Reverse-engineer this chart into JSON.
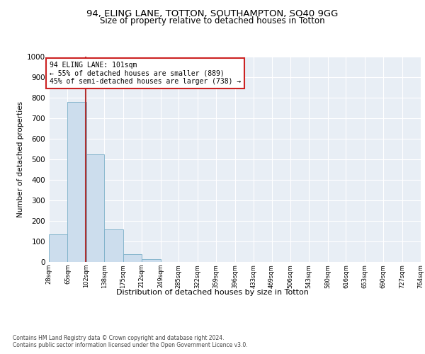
{
  "title_line1": "94, ELING LANE, TOTTON, SOUTHAMPTON, SO40 9GG",
  "title_line2": "Size of property relative to detached houses in Totton",
  "xlabel": "Distribution of detached houses by size in Totton",
  "ylabel": "Number of detached properties",
  "bar_color": "#ccdded",
  "bar_edge_color": "#7aafc8",
  "vline_color": "#b03030",
  "vline_x": 101,
  "annotation_text": "94 ELING LANE: 101sqm\n← 55% of detached houses are smaller (889)\n45% of semi-detached houses are larger (738) →",
  "annotation_box_color": "#ffffff",
  "annotation_box_edge": "#cc2222",
  "bin_edges": [
    28,
    65,
    102,
    138,
    175,
    212,
    249,
    285,
    322,
    359,
    396,
    433,
    469,
    506,
    543,
    580,
    616,
    653,
    690,
    727,
    764
  ],
  "bar_heights": [
    133,
    778,
    524,
    158,
    38,
    13,
    0,
    0,
    0,
    0,
    0,
    0,
    0,
    0,
    0,
    0,
    0,
    0,
    0,
    0
  ],
  "ylim": [
    0,
    1000
  ],
  "yticks": [
    0,
    100,
    200,
    300,
    400,
    500,
    600,
    700,
    800,
    900,
    1000
  ],
  "footer_line1": "Contains HM Land Registry data © Crown copyright and database right 2024.",
  "footer_line2": "Contains public sector information licensed under the Open Government Licence v3.0.",
  "background_color": "#ffffff",
  "plot_bg_color": "#e8eef5",
  "grid_color": "#ffffff",
  "title1_fontsize": 9.5,
  "title2_fontsize": 8.5,
  "ylabel_fontsize": 7.5,
  "xlabel_fontsize": 8,
  "ytick_fontsize": 7.5,
  "xtick_fontsize": 6,
  "footer_fontsize": 5.5,
  "annot_fontsize": 7
}
